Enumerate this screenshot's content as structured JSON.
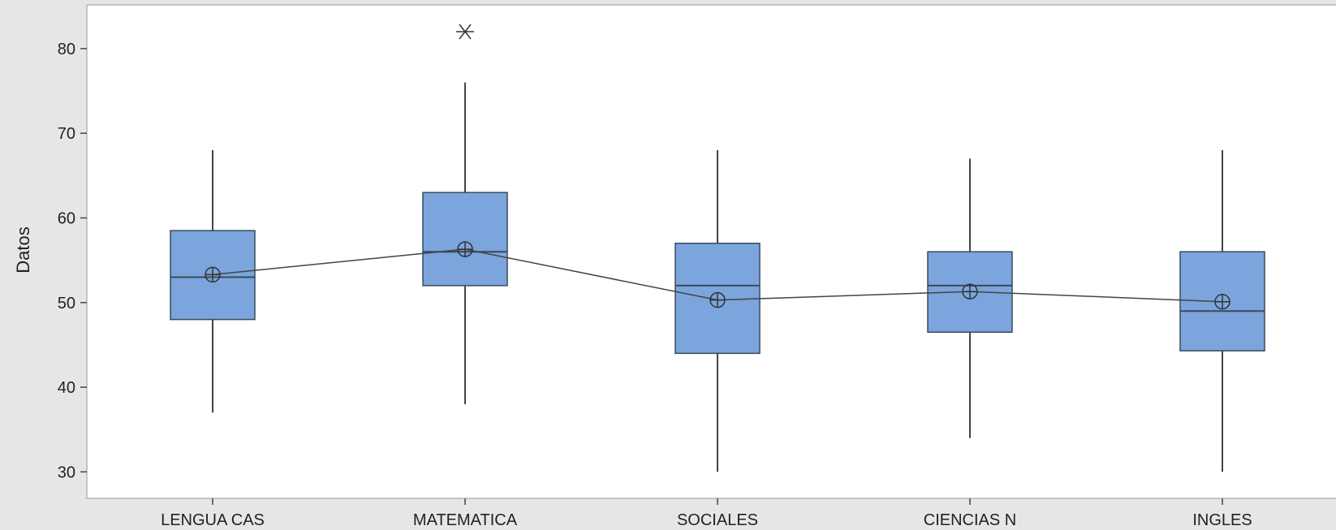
{
  "chart_data": {
    "type": "boxplot",
    "title": "",
    "xlabel": "",
    "ylabel": "Datos",
    "ylim": [
      27,
      85
    ],
    "yticks": [
      30,
      40,
      50,
      60,
      70,
      80
    ],
    "grid": false,
    "categories": [
      "LENGUA CAS",
      "MATEMATICA",
      "SOCIALES",
      "CIENCIAS N",
      "INGLES"
    ],
    "boxes": [
      {
        "category": "LENGUA CAS",
        "whisker_low": 37,
        "q1": 48,
        "median": 53,
        "q3": 58.5,
        "whisker_high": 68,
        "mean": 53.3,
        "outliers": []
      },
      {
        "category": "MATEMATICA",
        "whisker_low": 38,
        "q1": 52,
        "median": 56,
        "q3": 63,
        "whisker_high": 76,
        "mean": 56.3,
        "outliers": [
          82
        ]
      },
      {
        "category": "SOCIALES",
        "whisker_low": 30,
        "q1": 44,
        "median": 52,
        "q3": 57,
        "whisker_high": 68,
        "mean": 50.3,
        "outliers": []
      },
      {
        "category": "CIENCIAS N",
        "whisker_low": 34,
        "q1": 46.5,
        "median": 52,
        "q3": 56,
        "whisker_high": 67,
        "mean": 51.3,
        "outliers": []
      },
      {
        "category": "INGLES",
        "whisker_low": 30,
        "q1": 44.3,
        "median": 49,
        "q3": 56,
        "whisker_high": 68,
        "mean": 50.1,
        "outliers": []
      }
    ],
    "mean_line": true,
    "colors": {
      "box_fill": "#7ba5dc",
      "box_stroke": "#3a4a5c",
      "line": "#444444",
      "background": "#e6e6e6",
      "plot_bg": "#ffffff"
    }
  }
}
